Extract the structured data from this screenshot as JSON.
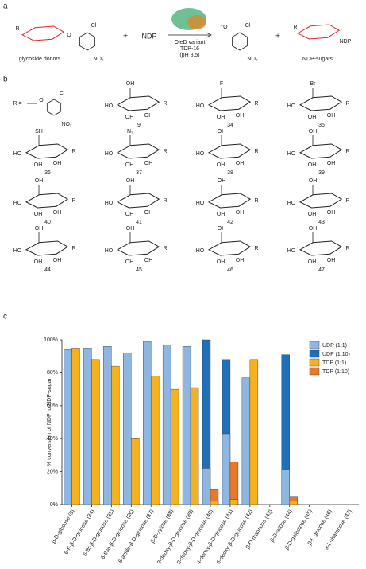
{
  "panel_labels": [
    "a",
    "b",
    "c"
  ],
  "reaction": {
    "donor_label": "glycoside donors",
    "plus": "+",
    "ndp": "NDP",
    "enzyme": [
      "OleD variant",
      "TDP-16",
      "(pH 8.5)"
    ],
    "product_label": "NDP-sugars",
    "atoms": {
      "r": "R",
      "cl": "Cl",
      "no2": "NO₂",
      "o": "O",
      "o_minus": "⁻O"
    }
  },
  "structures": {
    "r_def": "R =",
    "oh": "OH",
    "ho": "HO",
    "r": "R",
    "compounds": [
      {
        "number": "9"
      },
      {
        "number": "34",
        "substituent": "F"
      },
      {
        "number": "35",
        "substituent": "Br"
      },
      {
        "number": "36",
        "substituent": "SH"
      },
      {
        "number": "37",
        "substituent": "N₃"
      },
      {
        "number": "38"
      },
      {
        "number": "39"
      },
      {
        "number": "40"
      },
      {
        "number": "41"
      },
      {
        "number": "42"
      },
      {
        "number": "43"
      },
      {
        "number": "44"
      },
      {
        "number": "45"
      },
      {
        "number": "46"
      },
      {
        "number": "47"
      }
    ]
  },
  "chart_data": {
    "type": "bar",
    "y_label": "% conversion of NDP to NDP-sugar",
    "categories": [
      "β-D-glucose (9)",
      "6-F-β-D-glucose (34)",
      "6-Br-β-D-glucose (35)",
      "6-thio-β-D-glucose (36)",
      "6-azido-β-D-glucose (37)",
      "β-D-xylose (38)",
      "2-deoxy-β-D-glucose (39)",
      "3-deoxy-β-D-glucose (40)",
      "4-deoxy-β-D-glucose (41)",
      "6-deoxy-β-D-glucose (42)",
      "β-D-mannose (43)",
      "β-D-allose (44)",
      "β-D-galactose (45)",
      "β-L-glucose (46)",
      "α-L-rhamnose (47)"
    ],
    "series": [
      {
        "name": "UDP (1:1)",
        "color": "#8fb6e0",
        "values": [
          94,
          95,
          96,
          92,
          99,
          97,
          96,
          22,
          43,
          77,
          0,
          21,
          0,
          0,
          0
        ]
      },
      {
        "name": "UDP (1:10)",
        "color": "#1f70b8",
        "values": [
          null,
          null,
          null,
          null,
          null,
          null,
          null,
          100,
          88,
          null,
          null,
          91,
          null,
          null,
          null
        ]
      },
      {
        "name": "TDP (1:1)",
        "color": "#f5b21e",
        "values": [
          95,
          88,
          84,
          40,
          78,
          70,
          71,
          2,
          3,
          88,
          0,
          2,
          0,
          0,
          0
        ]
      },
      {
        "name": "TDP (1:10)",
        "color": "#e8792b",
        "values": [
          null,
          null,
          null,
          null,
          null,
          null,
          null,
          9,
          26,
          null,
          null,
          5,
          null,
          null,
          null
        ]
      }
    ],
    "ylim": [
      0,
      100
    ],
    "yticks": [
      {
        "value": 0,
        "label": "0%"
      },
      {
        "value": 20,
        "label": "20%"
      },
      {
        "value": 40,
        "label": "40%"
      },
      {
        "value": 60,
        "label": "60%"
      },
      {
        "value": 80,
        "label": "80%"
      },
      {
        "value": 100,
        "label": "100%"
      }
    ],
    "legend": "top-right"
  }
}
